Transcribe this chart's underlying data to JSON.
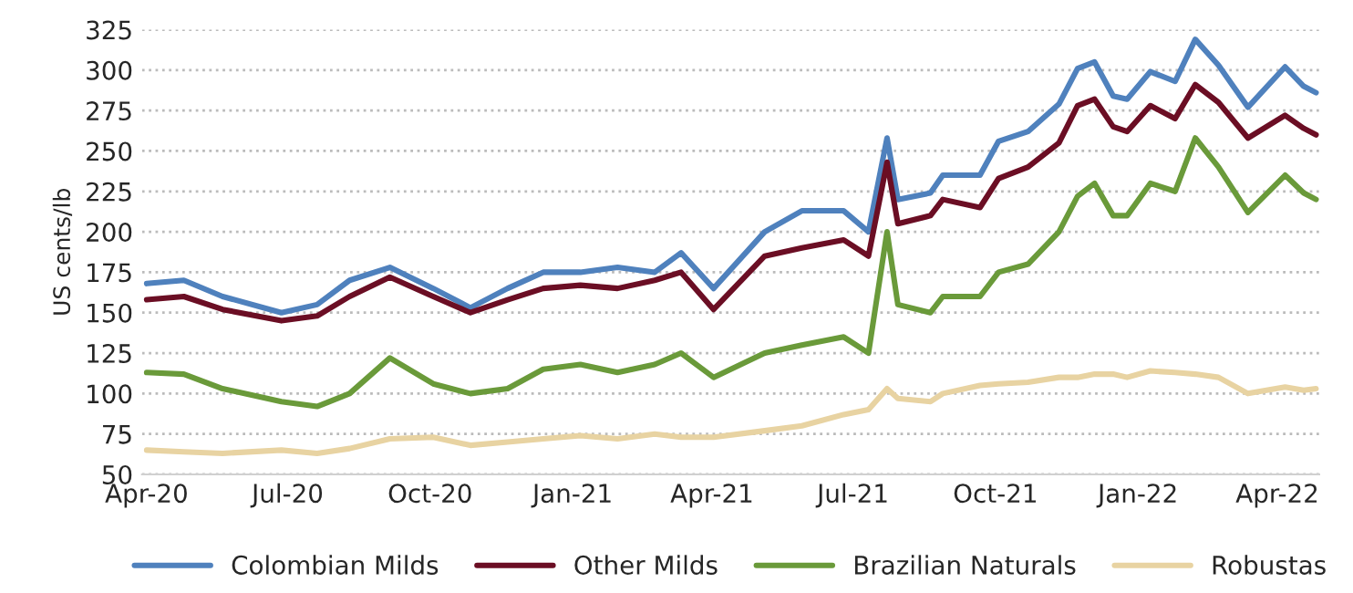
{
  "chart_data": {
    "type": "line",
    "ylabel": "US cents/lb",
    "x": [
      "2020-04-01",
      "2020-04-25",
      "2020-05-20",
      "2020-06-27",
      "2020-07-20",
      "2020-08-10",
      "2020-09-05",
      "2020-10-03",
      "2020-10-27",
      "2020-11-20",
      "2020-12-13",
      "2021-01-06",
      "2021-01-30",
      "2021-02-23",
      "2021-03-12",
      "2021-04-02",
      "2021-05-05",
      "2021-05-29",
      "2021-06-25",
      "2021-07-11",
      "2021-07-23",
      "2021-07-30",
      "2021-08-20",
      "2021-08-28",
      "2021-09-21",
      "2021-10-03",
      "2021-10-22",
      "2021-11-11",
      "2021-11-23",
      "2021-12-04",
      "2021-12-16",
      "2021-12-25",
      "2022-01-09",
      "2022-01-25",
      "2022-02-07",
      "2022-02-22",
      "2022-03-13",
      "2022-04-06",
      "2022-04-18",
      "2022-04-26"
    ],
    "series": [
      {
        "name": "Colombian Milds",
        "color": "#4f81bd",
        "values": [
          168,
          170,
          160,
          150,
          155,
          170,
          178,
          165,
          153,
          165,
          175,
          175,
          178,
          175,
          187,
          165,
          200,
          213,
          213,
          200,
          258,
          220,
          224,
          235,
          235,
          256,
          262,
          279,
          301,
          305,
          284,
          282,
          299,
          293,
          319,
          303,
          277,
          302,
          290,
          286
        ]
      },
      {
        "name": "Other Milds",
        "color": "#6b0e24",
        "values": [
          158,
          160,
          152,
          145,
          148,
          160,
          172,
          160,
          150,
          158,
          165,
          167,
          165,
          170,
          175,
          152,
          185,
          190,
          195,
          185,
          243,
          205,
          210,
          220,
          215,
          233,
          240,
          255,
          278,
          282,
          265,
          262,
          278,
          270,
          291,
          280,
          258,
          272,
          264,
          260
        ]
      },
      {
        "name": "Brazilian Naturals",
        "color": "#6a9a3a",
        "values": [
          113,
          112,
          103,
          95,
          92,
          100,
          122,
          106,
          100,
          103,
          115,
          118,
          113,
          118,
          125,
          110,
          125,
          130,
          135,
          125,
          200,
          155,
          150,
          160,
          160,
          175,
          180,
          200,
          222,
          230,
          210,
          210,
          230,
          225,
          258,
          240,
          212,
          235,
          224,
          220
        ]
      },
      {
        "name": "Robustas",
        "color": "#e8d3a2",
        "values": [
          65,
          64,
          63,
          65,
          63,
          66,
          72,
          73,
          68,
          70,
          72,
          74,
          72,
          75,
          73,
          73,
          77,
          80,
          87,
          90,
          103,
          97,
          95,
          100,
          105,
          106,
          107,
          110,
          110,
          112,
          112,
          110,
          114,
          113,
          112,
          110,
          100,
          104,
          102,
          103
        ]
      }
    ],
    "xlim": [
      "2020-03-29",
      "2022-04-28"
    ],
    "xticks": [
      {
        "value": "2020-04-01",
        "label": "Apr-20"
      },
      {
        "value": "2020-07-01",
        "label": "Jul-20"
      },
      {
        "value": "2020-10-01",
        "label": "Oct-20"
      },
      {
        "value": "2021-01-01",
        "label": "Jan-21"
      },
      {
        "value": "2021-04-01",
        "label": "Apr-21"
      },
      {
        "value": "2021-07-01",
        "label": "Jul-21"
      },
      {
        "value": "2021-10-01",
        "label": "Oct-21"
      },
      {
        "value": "2022-01-01",
        "label": "Jan-22"
      },
      {
        "value": "2022-04-01",
        "label": "Apr-22"
      }
    ],
    "ylim": [
      50,
      325
    ],
    "yticks": [
      50,
      75,
      100,
      125,
      150,
      175,
      200,
      225,
      250,
      275,
      300,
      325
    ],
    "grid": "y",
    "legend": "bottom",
    "marker": "none",
    "line_style": "solid"
  }
}
